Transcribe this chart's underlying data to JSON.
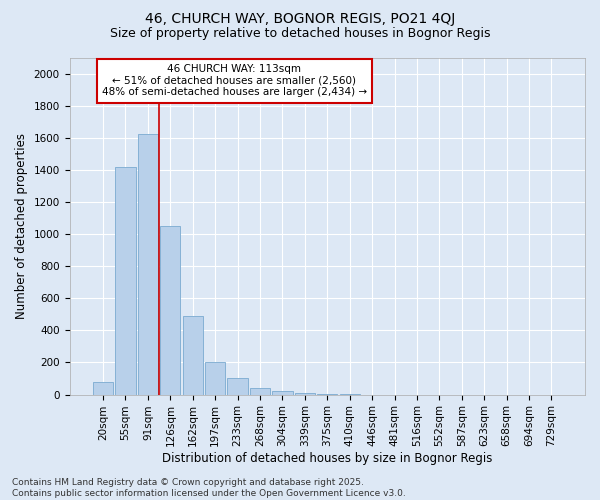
{
  "title_line1": "46, CHURCH WAY, BOGNOR REGIS, PO21 4QJ",
  "title_line2": "Size of property relative to detached houses in Bognor Regis",
  "xlabel": "Distribution of detached houses by size in Bognor Regis",
  "ylabel": "Number of detached properties",
  "categories": [
    "20sqm",
    "55sqm",
    "91sqm",
    "126sqm",
    "162sqm",
    "197sqm",
    "233sqm",
    "268sqm",
    "304sqm",
    "339sqm",
    "375sqm",
    "410sqm",
    "446sqm",
    "481sqm",
    "516sqm",
    "552sqm",
    "587sqm",
    "623sqm",
    "658sqm",
    "694sqm",
    "729sqm"
  ],
  "values": [
    80,
    1420,
    1625,
    1050,
    490,
    200,
    105,
    40,
    25,
    8,
    5,
    2,
    0,
    0,
    0,
    0,
    0,
    0,
    0,
    0,
    0
  ],
  "bar_color": "#b8d0ea",
  "bar_edge_color": "#7aaad0",
  "vline_x": 2.5,
  "vline_color": "#cc0000",
  "annotation_text": "46 CHURCH WAY: 113sqm\n← 51% of detached houses are smaller (2,560)\n48% of semi-detached houses are larger (2,434) →",
  "annotation_box_color": "#ffffff",
  "annotation_box_edge": "#cc0000",
  "ylim": [
    0,
    2100
  ],
  "yticks": [
    0,
    200,
    400,
    600,
    800,
    1000,
    1200,
    1400,
    1600,
    1800,
    2000
  ],
  "background_color": "#dde8f5",
  "footer_line1": "Contains HM Land Registry data © Crown copyright and database right 2025.",
  "footer_line2": "Contains public sector information licensed under the Open Government Licence v3.0.",
  "title_fontsize": 10,
  "subtitle_fontsize": 9,
  "axis_label_fontsize": 8.5,
  "tick_fontsize": 7.5,
  "annotation_fontsize": 7.5,
  "footer_fontsize": 6.5
}
